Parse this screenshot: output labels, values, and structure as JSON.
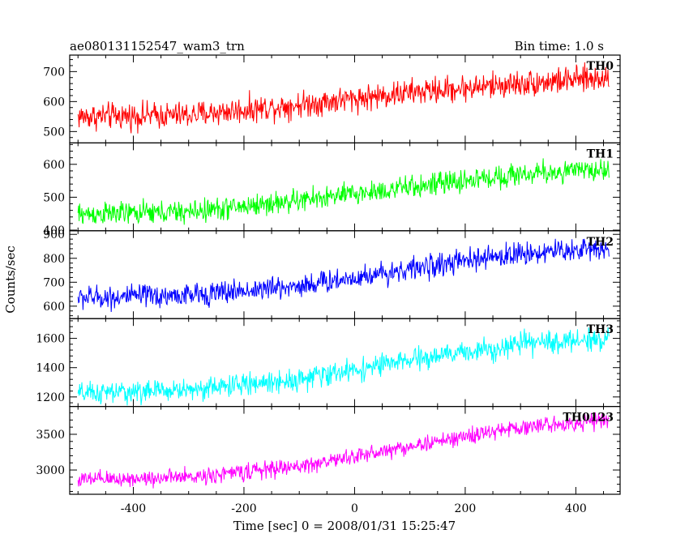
{
  "header": {
    "title": "ae080131152547_wam3_trn",
    "bin_time": "Bin time: 1.0 s"
  },
  "chart_data": {
    "type": "line",
    "xlabel": "Time [sec] 0 = 2008/01/31 15:25:47",
    "ylabel": "Counts/sec",
    "xlim": [
      -515,
      480
    ],
    "xticks": [
      -400,
      -200,
      0,
      200,
      400
    ],
    "x_start": -500,
    "x_end": 460,
    "x_step": 1,
    "panels": [
      {
        "name": "TH0",
        "color": "#ff0000",
        "ylim": [
          462,
          755
        ],
        "yticks": [
          500,
          600,
          700
        ],
        "trend": [
          [
            -500,
            550
          ],
          [
            -300,
            555
          ],
          [
            -100,
            590
          ],
          [
            100,
            630
          ],
          [
            300,
            660
          ],
          [
            460,
            680
          ]
        ],
        "noise_amplitude": 38
      },
      {
        "name": "TH1",
        "color": "#00ff00",
        "ylim": [
          398,
          665
        ],
        "yticks": [
          400,
          500,
          600
        ],
        "trend": [
          [
            -500,
            448
          ],
          [
            -300,
            455
          ],
          [
            -100,
            490
          ],
          [
            100,
            530
          ],
          [
            300,
            570
          ],
          [
            460,
            585
          ]
        ],
        "noise_amplitude": 30
      },
      {
        "name": "TH2",
        "color": "#0000ff",
        "ylim": [
          548,
          915
        ],
        "yticks": [
          600,
          700,
          800,
          900
        ],
        "trend": [
          [
            -500,
            635
          ],
          [
            -300,
            645
          ],
          [
            -100,
            685
          ],
          [
            100,
            755
          ],
          [
            300,
            820
          ],
          [
            460,
            845
          ]
        ],
        "noise_amplitude": 42
      },
      {
        "name": "TH3",
        "color": "#00ffff",
        "ylim": [
          1135,
          1735
        ],
        "yticks": [
          1200,
          1400,
          1600
        ],
        "trend": [
          [
            -500,
            1220
          ],
          [
            -300,
            1250
          ],
          [
            -100,
            1320
          ],
          [
            100,
            1450
          ],
          [
            300,
            1560
          ],
          [
            460,
            1600
          ]
        ],
        "noise_amplitude": 65
      },
      {
        "name": "TH0123",
        "color": "#ff00ff",
        "ylim": [
          2660,
          3890
        ],
        "yticks": [
          3000,
          3500
        ],
        "trend": [
          [
            -500,
            2860
          ],
          [
            -300,
            2900
          ],
          [
            -100,
            3050
          ],
          [
            100,
            3330
          ],
          [
            300,
            3600
          ],
          [
            460,
            3700
          ]
        ],
        "noise_amplitude": 100
      }
    ]
  }
}
